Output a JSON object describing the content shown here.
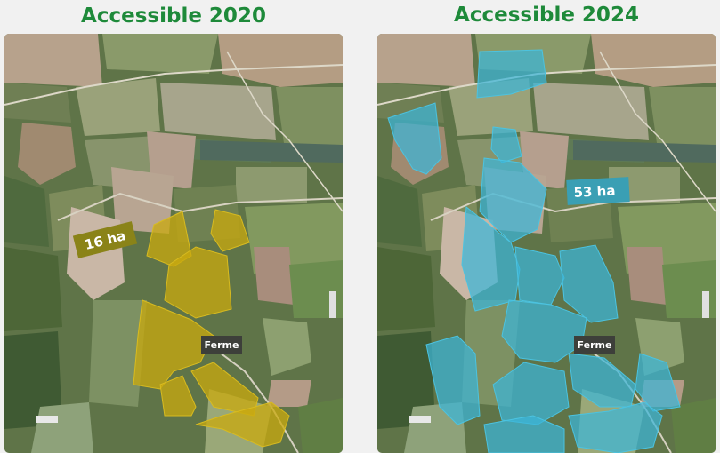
{
  "panels": [
    {
      "title": "Accessible 2020",
      "area_label": "16 ha",
      "farm_label": "Ferme"
    },
    {
      "title": "Accessible 2024",
      "area_label": "53 ha",
      "farm_label": "Ferme"
    }
  ]
}
